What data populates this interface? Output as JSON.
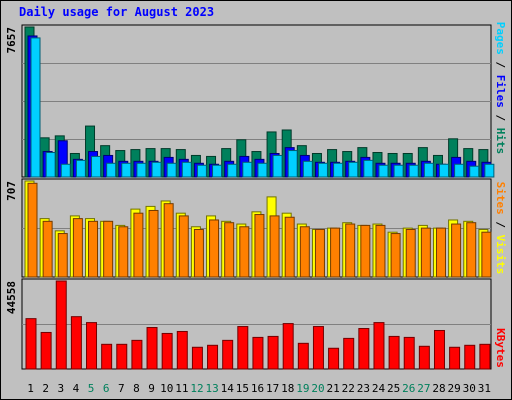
{
  "title": "Daily usage for August 2023",
  "colors": {
    "background": "#c0c0c0",
    "title": "#0000ff",
    "hits": "#00805c",
    "files": "#0000ff",
    "pages": "#00d0ff",
    "visits": "#ffff00",
    "sites": "#ff8000",
    "kbytes": "#ff0000",
    "weekend_label": "#00805c",
    "weekday_label": "#000000"
  },
  "chart_data": [
    {
      "type": "bar",
      "panel": "hits-files-pages",
      "ymax_label": "7657",
      "ylim": [
        0,
        7657
      ],
      "legend": [
        "Pages",
        "Files",
        "Hits"
      ],
      "categories": [
        "1",
        "2",
        "3",
        "4",
        "5",
        "6",
        "7",
        "8",
        "9",
        "10",
        "11",
        "12",
        "13",
        "14",
        "15",
        "16",
        "17",
        "18",
        "19",
        "20",
        "21",
        "22",
        "23",
        "24",
        "25",
        "26",
        "27",
        "28",
        "29",
        "30",
        "31"
      ],
      "weekend_days": [
        "5",
        "6",
        "12",
        "13",
        "19",
        "20",
        "26",
        "27"
      ],
      "series": [
        {
          "name": "Hits",
          "values": [
            7657,
            2000,
            2100,
            1200,
            2600,
            1600,
            1350,
            1400,
            1450,
            1450,
            1400,
            1100,
            1050,
            1450,
            1900,
            1300,
            2300,
            2400,
            1600,
            1200,
            1400,
            1300,
            1500,
            1250,
            1200,
            1200,
            1500,
            1100,
            1950,
            1450,
            1400
          ]
        },
        {
          "name": "Files",
          "values": [
            7200,
            1300,
            1850,
            900,
            1300,
            1100,
            800,
            800,
            800,
            1000,
            900,
            700,
            650,
            800,
            1050,
            900,
            1200,
            1500,
            1100,
            750,
            750,
            800,
            1000,
            700,
            700,
            700,
            800,
            650,
            1000,
            800,
            750
          ]
        },
        {
          "name": "Pages",
          "values": [
            7100,
            1250,
            650,
            850,
            1050,
            700,
            700,
            700,
            750,
            700,
            750,
            600,
            600,
            650,
            750,
            700,
            1100,
            1350,
            800,
            700,
            700,
            750,
            850,
            600,
            600,
            600,
            700,
            650,
            650,
            550,
            650
          ]
        }
      ]
    },
    {
      "type": "bar",
      "panel": "visits-sites",
      "ymax_label": "707",
      "ylim": [
        0,
        707
      ],
      "legend": [
        "Sites",
        "Visits"
      ],
      "categories": [
        "1",
        "2",
        "3",
        "4",
        "5",
        "6",
        "7",
        "8",
        "9",
        "10",
        "11",
        "12",
        "13",
        "14",
        "15",
        "16",
        "17",
        "18",
        "19",
        "20",
        "21",
        "22",
        "23",
        "24",
        "25",
        "26",
        "27",
        "28",
        "29",
        "30",
        "31"
      ],
      "series": [
        {
          "name": "Visits",
          "values": [
            707,
            430,
            340,
            450,
            430,
            410,
            380,
            500,
            520,
            560,
            470,
            370,
            450,
            410,
            390,
            480,
            590,
            470,
            390,
            350,
            360,
            400,
            380,
            390,
            330,
            360,
            380,
            360,
            420,
            410,
            350
          ]
        },
        {
          "name": "Sites",
          "values": [
            690,
            410,
            320,
            430,
            410,
            410,
            370,
            470,
            490,
            540,
            450,
            350,
            420,
            400,
            370,
            460,
            450,
            440,
            370,
            350,
            360,
            390,
            380,
            380,
            320,
            350,
            360,
            360,
            390,
            400,
            330
          ]
        }
      ]
    },
    {
      "type": "bar",
      "panel": "kbytes",
      "ymax_label": "44558",
      "ylim": [
        0,
        44558
      ],
      "legend": [
        "KBytes"
      ],
      "categories": [
        "1",
        "2",
        "3",
        "4",
        "5",
        "6",
        "7",
        "8",
        "9",
        "10",
        "11",
        "12",
        "13",
        "14",
        "15",
        "16",
        "17",
        "18",
        "19",
        "20",
        "21",
        "22",
        "23",
        "24",
        "25",
        "26",
        "27",
        "28",
        "29",
        "30",
        "31"
      ],
      "series": [
        {
          "name": "KBytes",
          "values": [
            25500,
            18500,
            44558,
            26500,
            23500,
            12500,
            12500,
            14500,
            21000,
            18000,
            19000,
            11000,
            12000,
            14500,
            21500,
            16000,
            16500,
            23000,
            13000,
            21500,
            10500,
            15500,
            20500,
            23500,
            16500,
            16000,
            11500,
            19500,
            11000,
            12000,
            12500
          ]
        }
      ]
    }
  ]
}
